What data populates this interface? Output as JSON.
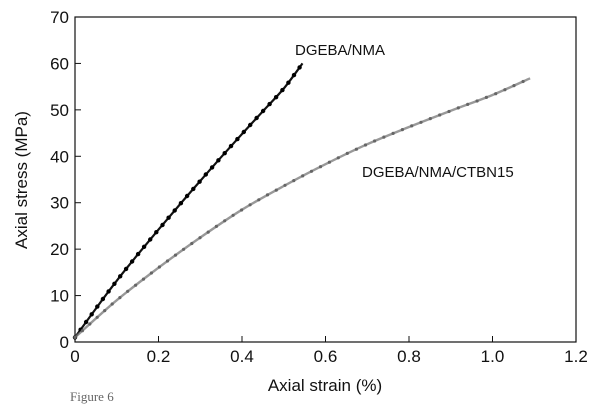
{
  "chart_data": {
    "type": "line",
    "xlabel": "Axial strain (%)",
    "ylabel": "Axial stress (MPa)",
    "xlim": [
      0,
      1.2
    ],
    "ylim": [
      0,
      70
    ],
    "xticks": [
      0,
      0.2,
      0.4,
      0.6,
      0.8,
      1.0,
      1.2
    ],
    "xtick_labels": [
      "0",
      "0.2",
      "0.4",
      "0.6",
      "0.8",
      "1.0",
      "1.2"
    ],
    "yticks": [
      0,
      10,
      20,
      30,
      40,
      50,
      60,
      70
    ],
    "ytick_labels": [
      "0",
      "10",
      "20",
      "30",
      "40",
      "50",
      "60",
      "70"
    ],
    "grid": false,
    "legend": "none",
    "annotations": [
      {
        "text": "DGEBA/NMA",
        "x": 0.52,
        "y": 63
      },
      {
        "text": "DGEBA/NMA/CTBN15",
        "x": 0.67,
        "y": 36
      }
    ],
    "series": [
      {
        "name": "DGEBA/NMA",
        "color": "#111111",
        "marker": "dot",
        "x": [
          0,
          0.05,
          0.1,
          0.15,
          0.2,
          0.25,
          0.3,
          0.35,
          0.4,
          0.45,
          0.5,
          0.545
        ],
        "y": [
          1,
          7.2,
          13.2,
          18.8,
          24.2,
          29.5,
          34.7,
          39.8,
          44.8,
          49.7,
          54.6,
          60
        ]
      },
      {
        "name": "DGEBA/NMA/CTBN15",
        "color": "#777777",
        "marker": "dot",
        "x": [
          0,
          0.1,
          0.2,
          0.3,
          0.4,
          0.5,
          0.6,
          0.7,
          0.8,
          0.9,
          1.0,
          1.09
        ],
        "y": [
          1,
          9,
          16,
          22.5,
          28.5,
          33.6,
          38.3,
          42.6,
          46.3,
          49.8,
          53.2,
          56.8
        ]
      }
    ]
  },
  "caption": "Figure 6"
}
